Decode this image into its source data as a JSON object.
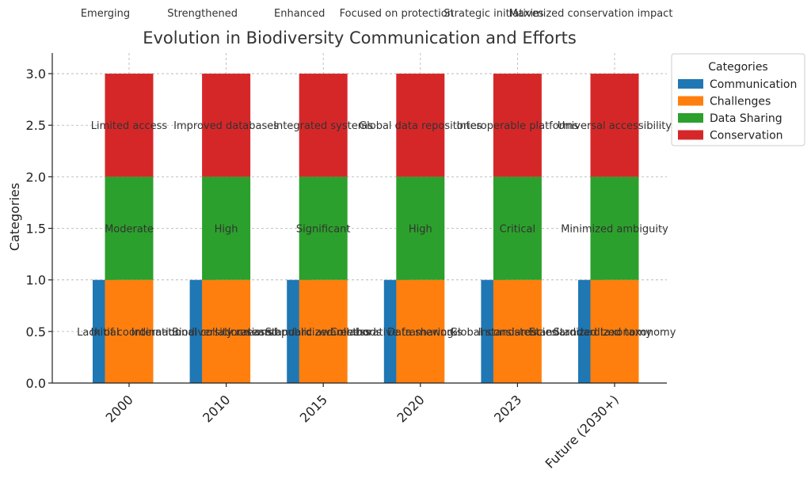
{
  "chart_data": {
    "type": "bar",
    "title": "Evolution in Biodiversity Communication and Efforts",
    "xlabel": "",
    "ylabel": "Categories",
    "ylim": [
      0,
      3.2
    ],
    "yticks": [
      "0.0",
      "0.5",
      "1.0",
      "1.5",
      "2.0",
      "2.5",
      "3.0"
    ],
    "grid": true,
    "legend": {
      "title": "Categories",
      "placement": "upper-right-outside"
    },
    "categories": [
      "2000",
      "2010",
      "2015",
      "2020",
      "2023",
      "Future (2030+)"
    ],
    "series": [
      {
        "name": "Communication",
        "color": "#1f77b4",
        "values": [
          1,
          1,
          1,
          1,
          1,
          1
        ],
        "labels": [
          "Initial",
          "International collaborations",
          "Increased public awareness",
          "Collaborative frameworks",
          "Global standards",
          "Standardized taxonomy"
        ]
      },
      {
        "name": "Challenges",
        "color": "#ff7f0e",
        "values": [
          1,
          1,
          1,
          1,
          1,
          1
        ],
        "labels": [
          "Lack of coordination",
          "Biodiversity research",
          "Standardized methods",
          "Data sharing",
          "Inconsistencies",
          "Standardized taxonomy"
        ]
      },
      {
        "name": "Data Sharing",
        "color": "#2ca02c",
        "values": [
          1,
          1,
          1,
          1,
          1,
          1
        ],
        "labels": [
          "Moderate",
          "High",
          "Significant",
          "High",
          "Critical",
          "Minimized ambiguity"
        ]
      },
      {
        "name": "Conservation",
        "color": "#d62728",
        "values": [
          1,
          1,
          1,
          1,
          1,
          1
        ],
        "labels": [
          "Limited access",
          "Improved databases",
          "Integrated systems",
          "Global data repositories",
          "Interoperable platforms",
          "Universal accessibility"
        ]
      }
    ],
    "top_labels": [
      "Emerging",
      "Strengthened",
      "Enhanced",
      "Focused on protection",
      "Strategic initiatives",
      "Maximized conservation impact"
    ]
  }
}
